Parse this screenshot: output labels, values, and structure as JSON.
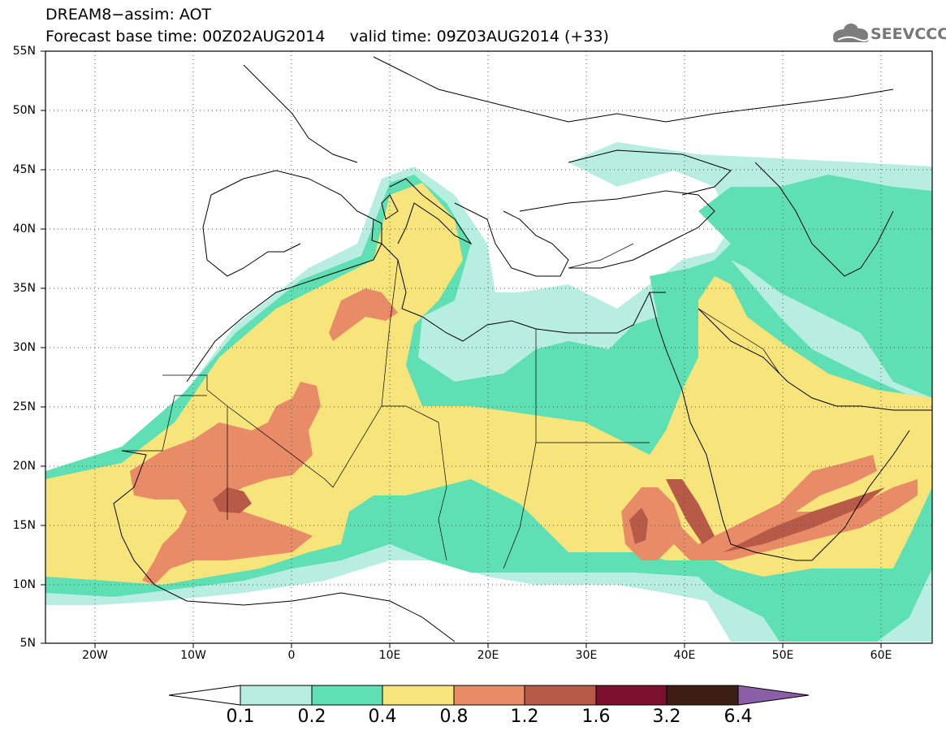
{
  "title": {
    "line1": "DREAM8−assim: AOT",
    "line2": "Forecast base time: 00Z02AUG2014     valid time: 09Z03AUG2014 (+33)"
  },
  "logo": {
    "text": "SEEVCCC",
    "icon": "cloud-icon"
  },
  "map": {
    "lon_range": [
      -25,
      65
    ],
    "lat_range": [
      5,
      55
    ],
    "y_ticks": [
      "55N",
      "50N",
      "45N",
      "40N",
      "35N",
      "30N",
      "25N",
      "20N",
      "15N",
      "10N",
      "5N"
    ],
    "x_ticks": [
      "20W",
      "10W",
      "0",
      "10E",
      "20E",
      "30E",
      "40E",
      "50E",
      "60E"
    ],
    "grid": "dotted"
  },
  "colorbar": {
    "levels": [
      "0.1",
      "0.2",
      "0.4",
      "0.8",
      "1.2",
      "1.6",
      "3.2",
      "6.4"
    ],
    "colors": [
      "#ffffff",
      "#b8eee1",
      "#5ee0b4",
      "#f7e47a",
      "#e88c68",
      "#b85a48",
      "#7a0f2e",
      "#3c1e12",
      "#8a5fa8"
    ]
  }
}
